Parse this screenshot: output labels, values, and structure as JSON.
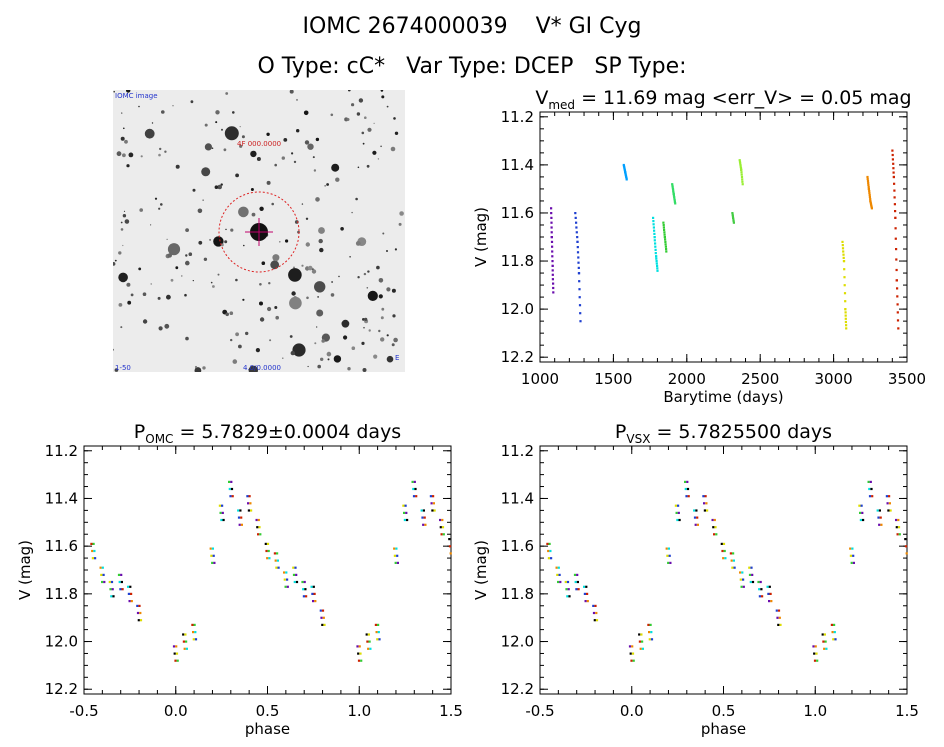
{
  "header": {
    "line1": "IOMC 2674000039    V* GI Cyg",
    "line2": "O Type: cC*   Var Type: DCEP   SP Type:"
  },
  "image_panel": {
    "label_top_left": "IOMC image",
    "label_center": "4F 000.0000",
    "label_bottom_left": "1-50",
    "label_bottom_center": "4.0/0.0000",
    "label_bottom_right": "E"
  },
  "chart_data": [
    {
      "id": "lightcurve",
      "type": "scatter",
      "title": "V_med = 11.69 mag <err_V> = 0.05 mag",
      "title_main": "V",
      "title_sub": "med",
      "title_rest": " = 11.69 mag <err_V> = 0.05 mag",
      "xlabel": "Barytime (days)",
      "ylabel": "V (mag)",
      "xlim": [
        1000,
        3500
      ],
      "ylim": [
        12.22,
        11.18
      ],
      "xticks": [
        1000,
        1500,
        2000,
        2500,
        3000,
        3500
      ],
      "yticks": [
        11.2,
        11.4,
        11.6,
        11.8,
        12.0,
        12.2
      ],
      "series": [
        {
          "color": "#6a0dad",
          "x": [
            1075,
            1080,
            1085,
            1090
          ],
          "y": [
            11.58,
            11.7,
            11.82,
            11.93
          ]
        },
        {
          "color": "#1f3fd0",
          "x": [
            1240,
            1255,
            1265,
            1275
          ],
          "y": [
            11.6,
            11.72,
            11.85,
            12.05
          ]
        },
        {
          "color": "#00a0ff",
          "x": [
            1570,
            1580,
            1590
          ],
          "y": [
            11.4,
            11.43,
            11.46
          ]
        },
        {
          "color": "#00e0e0",
          "x": [
            1770,
            1780,
            1790,
            1800
          ],
          "y": [
            11.62,
            11.7,
            11.78,
            11.84
          ]
        },
        {
          "color": "#33cc33",
          "x": [
            1840,
            1850,
            1860
          ],
          "y": [
            11.64,
            11.7,
            11.76
          ]
        },
        {
          "color": "#33dd66",
          "x": [
            1900,
            1910,
            1920
          ],
          "y": [
            11.48,
            11.52,
            11.56
          ]
        },
        {
          "color": "#44cc44",
          "x": [
            2310,
            2320
          ],
          "y": [
            11.6,
            11.64
          ]
        },
        {
          "color": "#99ee33",
          "x": [
            2360,
            2370,
            2380
          ],
          "y": [
            11.38,
            11.42,
            11.48
          ]
        },
        {
          "color": "#dddd00",
          "x": [
            3060,
            3070,
            3080,
            3085
          ],
          "y": [
            11.72,
            11.8,
            12.0,
            12.08
          ]
        },
        {
          "color": "#ee8800",
          "x": [
            3230,
            3240,
            3250,
            3260
          ],
          "y": [
            11.45,
            11.5,
            11.55,
            11.58
          ]
        },
        {
          "color": "#cc2200",
          "x": [
            3400,
            3410,
            3420,
            3430,
            3440
          ],
          "y": [
            11.34,
            11.45,
            11.62,
            11.88,
            12.08
          ]
        }
      ]
    },
    {
      "id": "phase_omc",
      "type": "scatter",
      "title": "P_OMC = 5.7829±0.0004 days",
      "title_main": "P",
      "title_sub": "OMC",
      "title_rest": " = 5.7829±0.0004 days",
      "xlabel": "phase",
      "ylabel": "V (mag)",
      "xlim": [
        -0.5,
        1.5
      ],
      "ylim": [
        12.22,
        11.18
      ],
      "xticks": [
        -0.5,
        0.0,
        0.5,
        1.0,
        1.5
      ],
      "yticks": [
        11.2,
        11.4,
        11.6,
        11.8,
        12.0,
        12.2
      ],
      "phase": [
        -0.45,
        -0.4,
        -0.35,
        -0.3,
        -0.25,
        -0.2,
        0.0,
        0.05,
        0.1,
        0.2,
        0.25,
        0.3,
        0.35,
        0.4,
        0.45,
        0.5,
        0.55,
        0.6,
        0.65,
        0.7,
        0.75,
        0.8,
        1.0,
        1.05,
        1.1,
        1.2,
        1.25,
        1.3,
        1.35,
        1.4,
        1.45,
        1.5
      ],
      "vmag": [
        11.62,
        11.72,
        11.78,
        11.75,
        11.8,
        11.88,
        12.05,
        12.0,
        11.96,
        11.64,
        11.46,
        11.36,
        11.48,
        11.42,
        11.52,
        11.62,
        11.66,
        11.74,
        11.72,
        11.78,
        11.8,
        11.9,
        12.05,
        12.0,
        11.96,
        11.64,
        11.46,
        11.36,
        11.48,
        11.42,
        11.52,
        11.6
      ]
    },
    {
      "id": "phase_vsx",
      "type": "scatter",
      "title": "P_VSX = 5.7825500 days",
      "title_main": "P",
      "title_sub": "VSX",
      "title_rest": " = 5.7825500 days",
      "xlabel": "phase",
      "ylabel": "V (mag)",
      "xlim": [
        -0.5,
        1.5
      ],
      "ylim": [
        12.22,
        11.18
      ],
      "xticks": [
        -0.5,
        0.0,
        0.5,
        1.0,
        1.5
      ],
      "yticks": [
        11.2,
        11.4,
        11.6,
        11.8,
        12.0,
        12.2
      ],
      "phase": [
        -0.45,
        -0.4,
        -0.35,
        -0.3,
        -0.25,
        -0.2,
        0.0,
        0.05,
        0.1,
        0.2,
        0.25,
        0.3,
        0.35,
        0.4,
        0.45,
        0.5,
        0.55,
        0.6,
        0.65,
        0.7,
        0.75,
        0.8,
        1.0,
        1.05,
        1.1,
        1.2,
        1.25,
        1.3,
        1.35,
        1.4,
        1.45,
        1.5
      ],
      "vmag": [
        11.62,
        11.72,
        11.78,
        11.75,
        11.8,
        11.88,
        12.05,
        12.0,
        11.96,
        11.64,
        11.46,
        11.36,
        11.48,
        11.42,
        11.52,
        11.62,
        11.66,
        11.74,
        11.72,
        11.78,
        11.8,
        11.9,
        12.05,
        12.0,
        11.96,
        11.64,
        11.46,
        11.36,
        11.48,
        11.42,
        11.52,
        11.6
      ]
    }
  ]
}
